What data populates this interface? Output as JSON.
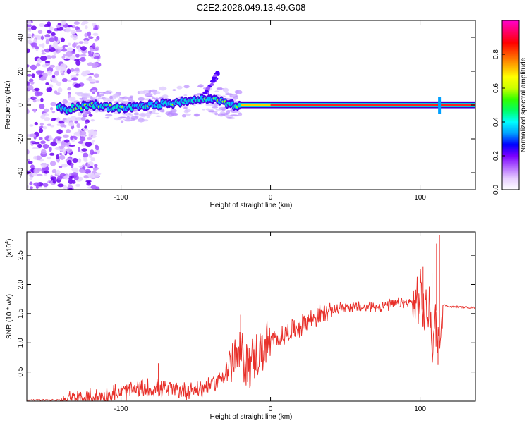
{
  "title": "C2E2.2026.049.13.49.G08",
  "chart_data": [
    {
      "type": "heatmap",
      "xlabel": "Height of straight line (km)",
      "ylabel": "Frequency (Hz)",
      "xlim": [
        -163,
        137
      ],
      "ylim": [
        -50,
        50
      ],
      "xticks": [
        -100,
        0,
        100
      ],
      "yticks": [
        -40,
        -20,
        0,
        20,
        40
      ],
      "colorbar": {
        "label": "Normalized spectral amplitude",
        "range": [
          0,
          1
        ],
        "ticks": [
          0.0,
          0.2,
          0.4,
          0.6,
          0.8
        ],
        "tick_labels": [
          "0.0",
          "0.2",
          "0.4",
          "0.6",
          "0.8"
        ],
        "colors": [
          "#ffffff",
          "#e6ccff",
          "#b266ff",
          "#7a00ff",
          "#0000ff",
          "#00a0ff",
          "#00ffff",
          "#00ff66",
          "#33ff00",
          "#ccff00",
          "#ffff00",
          "#ffaa00",
          "#ff5500",
          "#ff0000",
          "#ff0066",
          "#ff00cc"
        ]
      },
      "ridge": [
        {
          "x": -140,
          "freq": -3
        },
        {
          "x": -120,
          "freq": 0
        },
        {
          "x": -100,
          "freq": -2
        },
        {
          "x": -80,
          "freq": 0
        },
        {
          "x": -60,
          "freq": 2
        },
        {
          "x": -40,
          "freq": 4
        },
        {
          "x": -25,
          "freq": 0
        },
        {
          "x": -15,
          "freq": 0
        },
        {
          "x": 0,
          "freq": 0
        },
        {
          "x": 50,
          "freq": 0
        },
        {
          "x": 100,
          "freq": 0
        },
        {
          "x": 113,
          "freq": 0
        },
        {
          "x": 137,
          "freq": 0
        }
      ]
    },
    {
      "type": "line",
      "xlabel": "Height of straight line (km)",
      "ylabel": "SNR (10 * v/v)",
      "scale_label": "(x10",
      "scale_exp": "4",
      "xlim": [
        -163,
        137
      ],
      "ylim": [
        0,
        2.9
      ],
      "xticks": [
        -100,
        0,
        100
      ],
      "yticks": [
        0.5,
        1.0,
        1.5,
        2.0,
        2.5
      ],
      "ytick_labels": [
        "0.5",
        "1.0",
        "1.5",
        "2.0",
        "2.5"
      ],
      "color": "#e8302a",
      "series": [
        {
          "name": "SNR",
          "x": [
            -163,
            -140,
            -120,
            -105,
            -90,
            -75,
            -60,
            -45,
            -35,
            -28,
            -24,
            -20,
            -15,
            -10,
            -5,
            0,
            10,
            20,
            30,
            40,
            50,
            60,
            70,
            80,
            90,
            100,
            103,
            106,
            109,
            111,
            113,
            115,
            120,
            137
          ],
          "y": [
            0.02,
            0.02,
            0.05,
            0.12,
            0.2,
            0.22,
            0.18,
            0.22,
            0.35,
            0.55,
            0.7,
            0.8,
            0.65,
            0.75,
            0.9,
            1.0,
            1.15,
            1.3,
            1.45,
            1.55,
            1.62,
            1.6,
            1.62,
            1.65,
            1.68,
            1.7,
            1.5,
            1.6,
            1.0,
            1.55,
            0.9,
            1.65,
            1.62,
            1.6
          ]
        }
      ],
      "spikes": [
        {
          "x": -75,
          "y": 0.65
        },
        {
          "x": -20,
          "y": 1.48
        },
        {
          "x": 102,
          "y": 2.3
        },
        {
          "x": 108,
          "y": 2.2
        },
        {
          "x": 111,
          "y": 2.7
        },
        {
          "x": 113,
          "y": 2.85
        },
        {
          "x": 112,
          "y": 0.62
        }
      ]
    }
  ]
}
